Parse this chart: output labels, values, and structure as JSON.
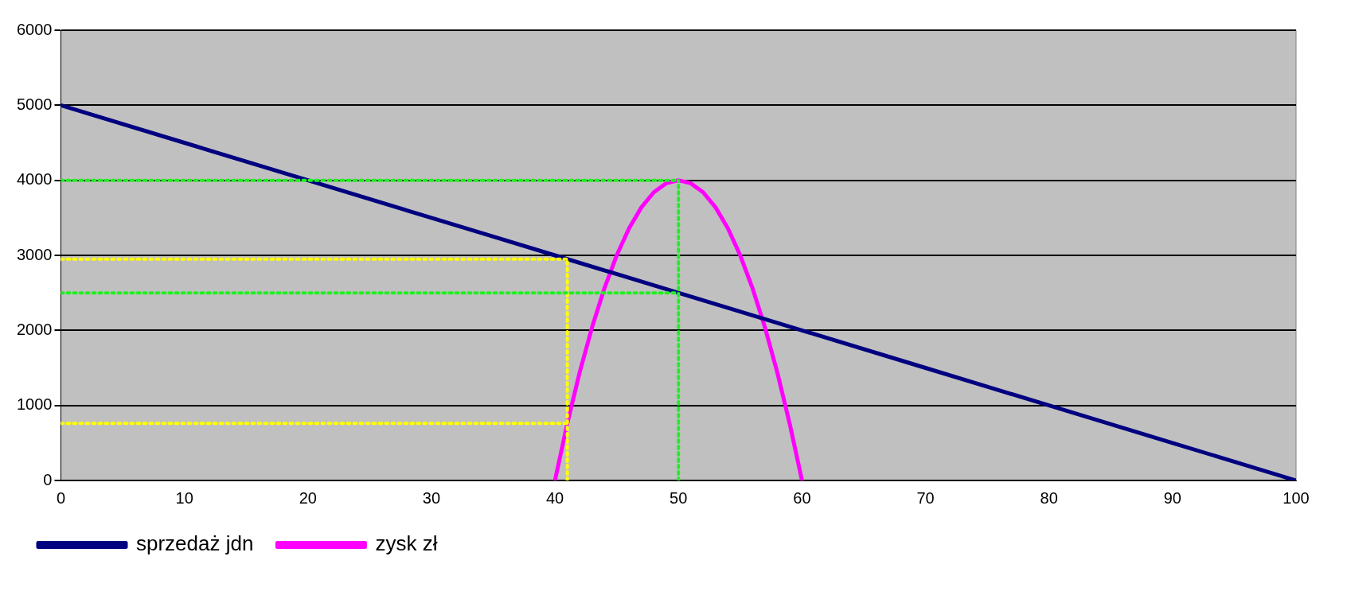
{
  "chart_data": {
    "type": "line",
    "xlim": [
      0,
      100
    ],
    "xticks": [
      0,
      10,
      20,
      30,
      40,
      50,
      60,
      70,
      80,
      90,
      100
    ],
    "ylim": [
      0,
      6000
    ],
    "yticks": [
      0,
      1000,
      2000,
      3000,
      4000,
      5000,
      6000
    ],
    "grid": "y",
    "legend": "bottom",
    "marker": "none",
    "series": [
      {
        "name": "sprzedaż jdn",
        "color": "#000080",
        "line_style": "solid",
        "x": [
          0,
          10,
          20,
          30,
          35,
          40,
          50,
          60,
          70,
          75,
          80,
          90,
          100
        ],
        "values": [
          5000,
          4500,
          4000,
          3500,
          3250,
          3000,
          2500,
          2000,
          1500,
          1250,
          1000,
          500,
          0
        ]
      },
      {
        "name": "zysk zł",
        "color": "#ff00ff",
        "line_style": "solid",
        "x": [
          40,
          41,
          42,
          43,
          44,
          45,
          46,
          47,
          48,
          49,
          50,
          51,
          52,
          53,
          54,
          55,
          56,
          57,
          58,
          59,
          60
        ],
        "values": [
          0,
          760,
          1440,
          2040,
          2560,
          3000,
          3360,
          3640,
          3840,
          3960,
          4000,
          3960,
          3840,
          3640,
          3360,
          3000,
          2560,
          2040,
          1440,
          760,
          0
        ]
      },
      {
        "color": "#22ee22",
        "line_style": "dotted",
        "x": [
          0,
          50
        ],
        "values": [
          4000,
          4000
        ]
      },
      {
        "color": "#22ee22",
        "line_style": "dotted",
        "x": [
          0,
          50
        ],
        "values": [
          2500,
          2500
        ]
      },
      {
        "color": "#22ee22",
        "line_style": "dotted",
        "x": [
          50,
          50
        ],
        "values": [
          0,
          4000
        ]
      },
      {
        "color": "#ffff00",
        "line_style": "dotted",
        "x": [
          0,
          41
        ],
        "values": [
          2950,
          2950
        ]
      },
      {
        "color": "#ffff00",
        "line_style": "dotted",
        "x": [
          0,
          41
        ],
        "values": [
          760,
          760
        ]
      },
      {
        "color": "#ffff00",
        "line_style": "dotted",
        "x": [
          41,
          41
        ],
        "values": [
          0,
          2950
        ]
      }
    ]
  }
}
